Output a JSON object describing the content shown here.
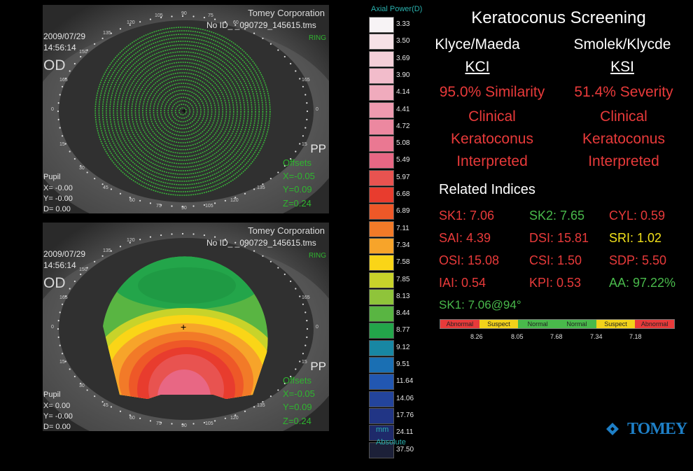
{
  "panels": [
    {
      "company": "Tomey Corporation",
      "date": "2009/07/29",
      "time": "14:56:14",
      "file": "No ID_ _090729_145615.tms",
      "mode": "RING",
      "eye": "OD",
      "pp": "PP",
      "offsets_label": "Offsets",
      "offset_x": "X=-0.05",
      "offset_y": "Y=0.09",
      "offset_z": "Z=0.24",
      "pupil_label": "Pupil",
      "pupil_x": "X= -0.00",
      "pupil_y": "Y= -0.00",
      "pupil_d": "D=  0.00"
    },
    {
      "company": "Tomey Corporation",
      "date": "2009/07/29",
      "time": "14:56:14",
      "file": "No ID_ _090729_145615.tms",
      "mode": "RING",
      "eye": "OD",
      "pp": "PP",
      "offsets_label": "Offsets",
      "offset_x": "X=-0.05",
      "offset_y": "Y=0.09",
      "offset_z": "Z=0.24",
      "pupil_label": "Pupil",
      "pupil_x": "X=  0.00",
      "pupil_y": "Y= -0.00",
      "pupil_d": "D=  0.00"
    }
  ],
  "degree_labels": {
    "d105": "105",
    "d90": "90",
    "d75": "75",
    "d60": "60",
    "d120": "120",
    "d135": "135",
    "d150": "150",
    "d165": "165",
    "d0": "0",
    "d180": "180",
    "d195": "195",
    "d15": "15",
    "d30": "30",
    "d45": "45",
    "d210": "210",
    "d225": "225",
    "d240": "240",
    "d255": "255",
    "d270": "270",
    "d285": "285",
    "d300": "300",
    "d315": "315",
    "d330": "330",
    "d345": "345"
  },
  "scale": {
    "title": "Axial Power(D)",
    "values": [
      "3.33",
      "3.50",
      "3.69",
      "3.90",
      "4.14",
      "4.41",
      "4.72",
      "5.08",
      "5.49",
      "5.97",
      "6.68",
      "6.89",
      "7.11",
      "7.34",
      "7.58",
      "7.85",
      "8.13",
      "8.44",
      "8.77",
      "9.12",
      "9.51",
      "11.64",
      "14.06",
      "17.76",
      "24.11",
      "37.50"
    ],
    "colors": [
      "#f7f3f5",
      "#f6e1e6",
      "#f4cfd8",
      "#f2bccb",
      "#f0abbd",
      "#ee9aaf",
      "#ec88a0",
      "#ea7892",
      "#e86784",
      "#e85350",
      "#e83c2e",
      "#ee5828",
      "#f27a28",
      "#f7a42a",
      "#fad517",
      "#c8d32a",
      "#8fc43a",
      "#59b542",
      "#23a54a",
      "#1887a3",
      "#1a6fb3",
      "#2257b1",
      "#23449c",
      "#213585",
      "#1e2a6a",
      "#1c2038"
    ],
    "unit": "mm",
    "mode": "Absolute"
  },
  "screening": {
    "title": "Keratoconus Screening",
    "left_author": "Klyce/Maeda",
    "right_author": "Smolek/Klycde",
    "left_index": "KCI",
    "right_index": "KSI",
    "left_value": "95.0% Similarity",
    "right_value": "51.4% Severity",
    "left_l1": "Clinical",
    "left_l2": "Keratoconus",
    "left_l3": "Interpreted",
    "right_l1": "Clinical",
    "right_l2": "Keratoconus",
    "right_l3": "Interpreted",
    "related_title": "Related Indices",
    "indices": {
      "sk1": "SK1: 7.06",
      "sk2": "SK2: 7.65",
      "cyl": "CYL:  0.59",
      "sai": "SAI: 4.39",
      "dsi": "DSI: 15.81",
      "sri": "SRI: 1.02",
      "osi": "OSI: 15.08",
      "csi": "CSI: 1.50",
      "sdp": "SDP: 5.50",
      "iai": "IAI: 0.54",
      "kpi": "KPI: 0.53",
      "aa": "AA: 97.22%",
      "sk1_axis": "SK1: 7.06@94°"
    },
    "bar_labels": [
      "Abnormal",
      "Suspect",
      "Normal",
      "Normal",
      "Suspect",
      "Abnormal"
    ],
    "bar_colors": [
      "#e83a3a",
      "#f2d21a",
      "#49b94b",
      "#49b94b",
      "#f2d21a",
      "#e83a3a"
    ],
    "bar_ticks": [
      "8.26",
      "8.05",
      "7.68",
      "7.34",
      "7.18"
    ]
  },
  "logo": "TOMEY"
}
